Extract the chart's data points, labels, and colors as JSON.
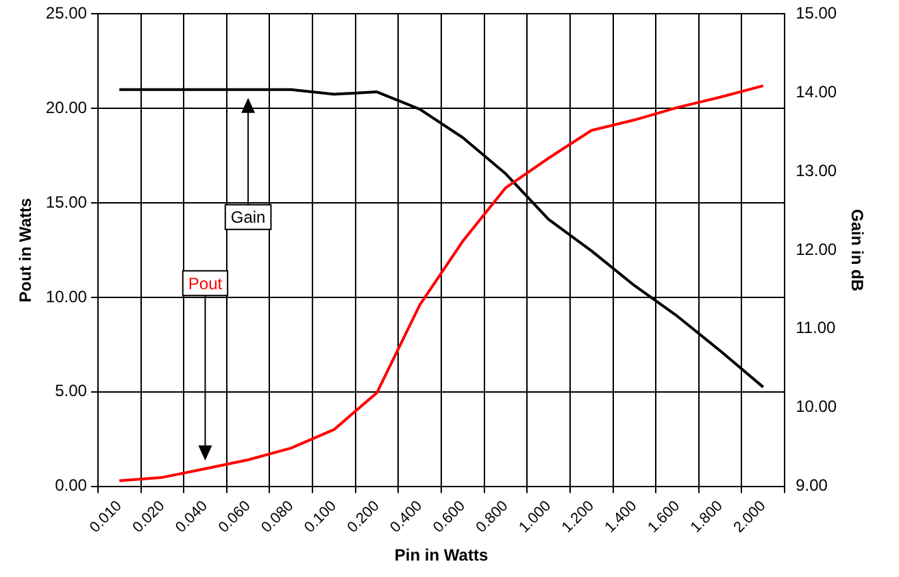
{
  "chart_data": {
    "type": "line",
    "xlabel": "Pin in Watts",
    "ylabel": "Pout in Watts",
    "y2label": "Gain in dB",
    "categories": [
      "0.010",
      "0.020",
      "0.040",
      "0.060",
      "0.080",
      "0.100",
      "0.200",
      "0.400",
      "0.600",
      "0.800",
      "1.000",
      "1.200",
      "1.400",
      "1.600",
      "1.800",
      "2.000"
    ],
    "series": [
      {
        "name": "Pout",
        "color": "#ff0000",
        "values": [
          0.29,
          0.47,
          0.93,
          1.4,
          2.02,
          3.0,
          4.95,
          9.6,
          12.97,
          15.8,
          17.37,
          18.84,
          19.39,
          20.05,
          20.6,
          21.2
        ]
      },
      {
        "name": "Gain",
        "color": "#000000",
        "axis": "y2",
        "values": [
          14.04,
          14.04,
          14.04,
          14.04,
          14.04,
          13.98,
          14.01,
          13.79,
          13.43,
          12.97,
          12.39,
          11.99,
          11.55,
          11.16,
          10.72,
          10.26
        ]
      }
    ],
    "ylim": [
      0,
      25
    ],
    "yticks": [
      {
        "value": 0,
        "label": "0.00"
      },
      {
        "value": 5,
        "label": "5.00"
      },
      {
        "value": 10,
        "label": "10.00"
      },
      {
        "value": 15,
        "label": "15.00"
      },
      {
        "value": 20,
        "label": "20.00"
      },
      {
        "value": 25,
        "label": "25.00"
      }
    ],
    "y2lim": [
      9,
      15
    ],
    "y2ticks": [
      {
        "value": 9,
        "label": "9.00"
      },
      {
        "value": 10,
        "label": "10.00"
      },
      {
        "value": 11,
        "label": "11.00"
      },
      {
        "value": 12,
        "label": "12.00"
      },
      {
        "value": 13,
        "label": "13.00"
      },
      {
        "value": 14,
        "label": "14.00"
      },
      {
        "value": 15,
        "label": "15.00"
      }
    ],
    "grid": true,
    "marker": "none",
    "line_style": "solid",
    "legend": false
  }
}
